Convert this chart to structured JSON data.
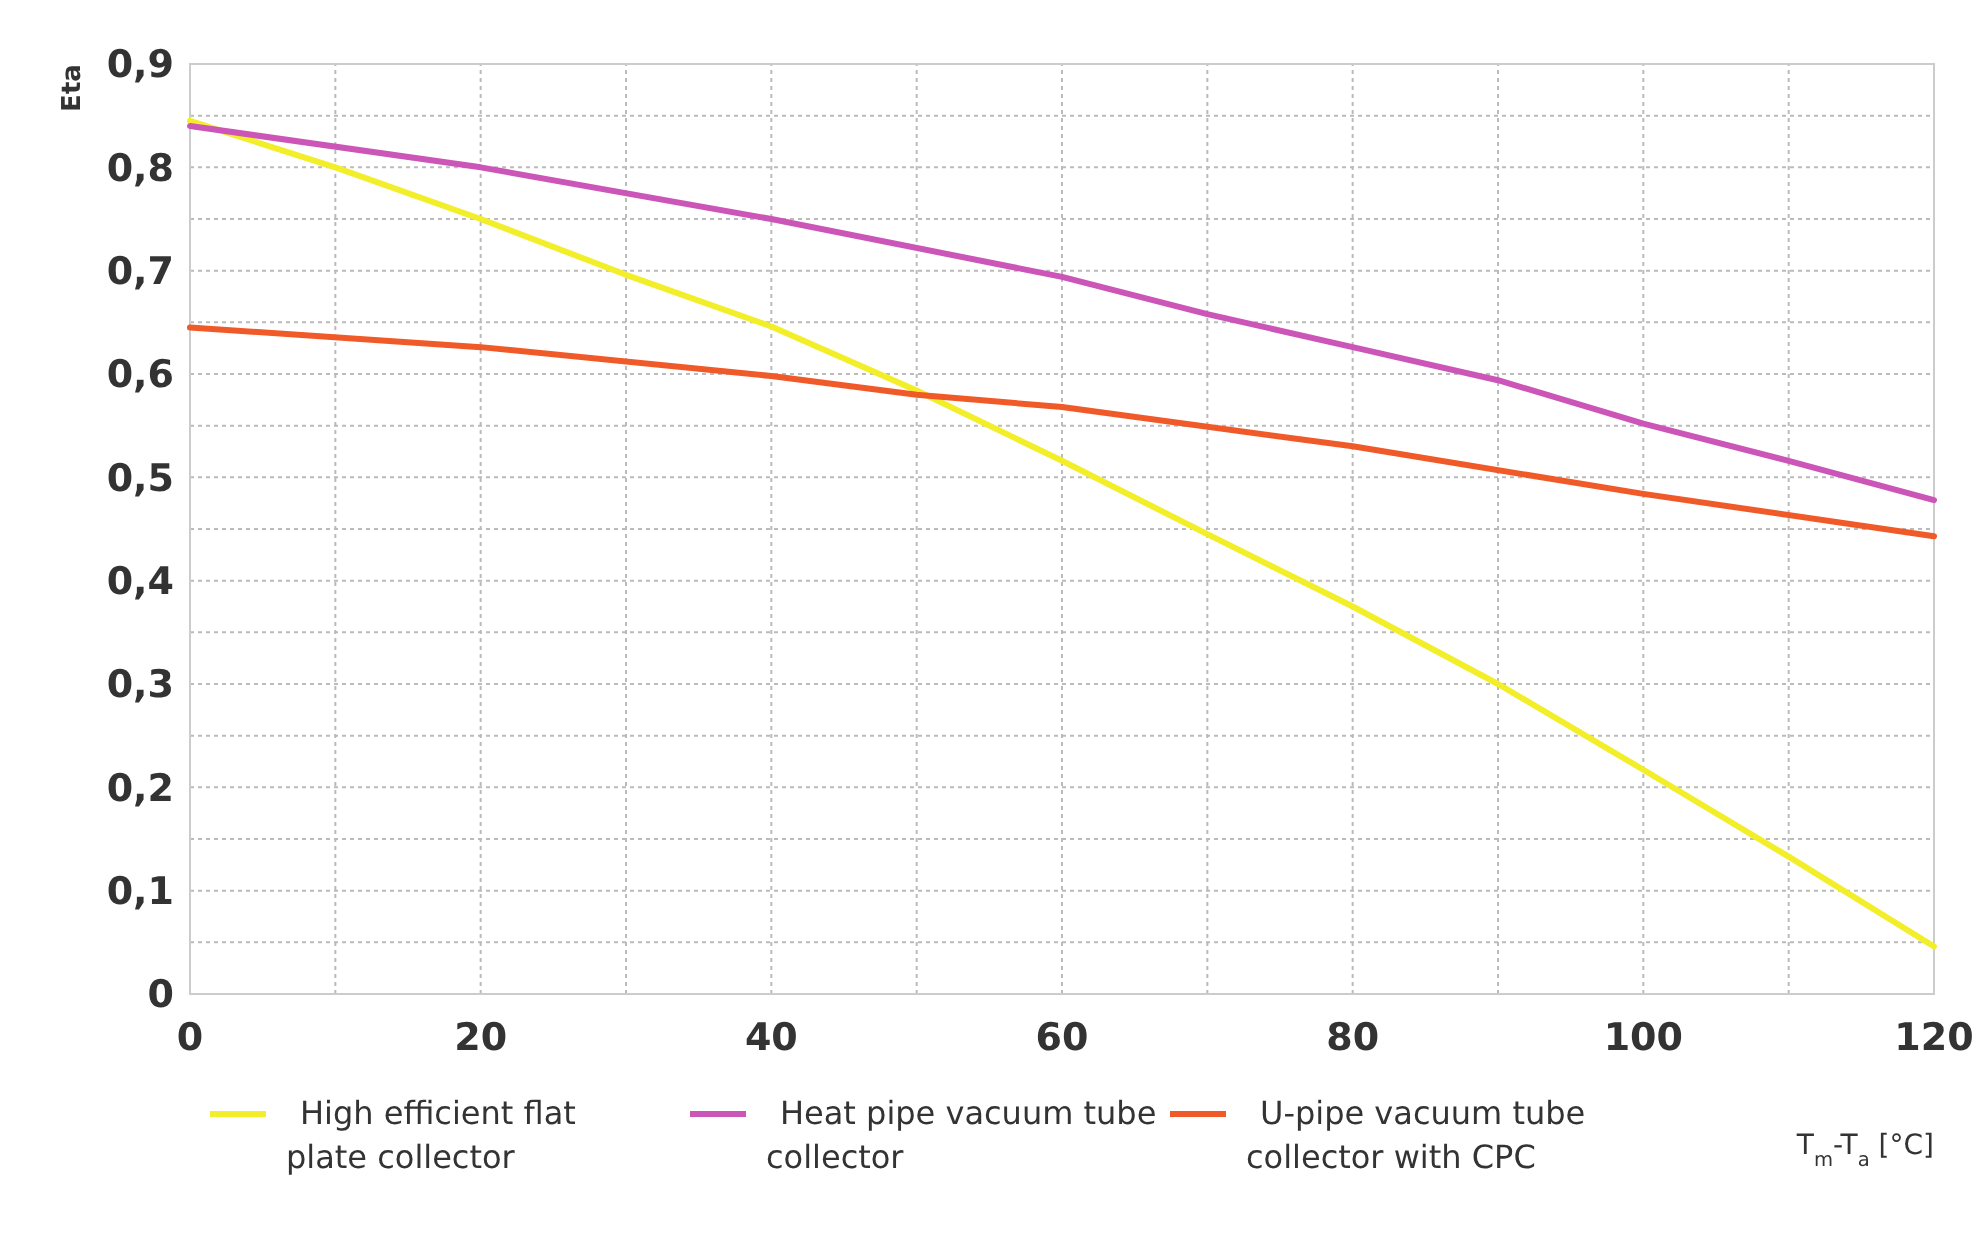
{
  "chart_data": {
    "type": "line",
    "xlabel": "T$_{m}$-T$_{a}$ [°C]",
    "ylabel": "Eta",
    "xlim": [
      0,
      120
    ],
    "ylim": [
      0,
      0.9
    ],
    "xticks": [
      0,
      {
        "value": 10,
        "label": null
      },
      20,
      {
        "value": 30,
        "label": null
      },
      40,
      {
        "value": 50,
        "label": null
      },
      60,
      {
        "value": 70,
        "label": null
      },
      80,
      {
        "value": 90,
        "label": null
      },
      100,
      {
        "value": 110,
        "label": null
      },
      120
    ],
    "yticks": [
      0,
      {
        "value": 0.05,
        "label": null
      },
      {
        "value": 0.1,
        "label": "0,1"
      },
      {
        "value": 0.15,
        "label": null
      },
      {
        "value": 0.2,
        "label": "0,2"
      },
      {
        "value": 0.25,
        "label": null
      },
      {
        "value": 0.3,
        "label": "0,3"
      },
      {
        "value": 0.35,
        "label": null
      },
      {
        "value": 0.4,
        "label": "0,4"
      },
      {
        "value": 0.45,
        "label": null
      },
      {
        "value": 0.5,
        "label": "0,5"
      },
      {
        "value": 0.55,
        "label": null
      },
      {
        "value": 0.6,
        "label": "0,6"
      },
      {
        "value": 0.65,
        "label": null
      },
      {
        "value": 0.7,
        "label": "0,7"
      },
      {
        "value": 0.75,
        "label": null
      },
      {
        "value": 0.8,
        "label": "0,8"
      },
      {
        "value": 0.85,
        "label": null
      },
      {
        "value": 0.9,
        "label": "0,9"
      }
    ],
    "grid": true,
    "legend": "bottom",
    "marker": "none",
    "line_style": "solid",
    "series": [
      {
        "name": "High efficient flat plate collector",
        "color": "#f2ee2a",
        "x": [
          0,
          10,
          20,
          30,
          40,
          50,
          60,
          70,
          80,
          90,
          100,
          110,
          120
        ],
        "values": [
          0.845,
          0.8,
          0.75,
          0.696,
          0.646,
          0.584,
          0.516,
          0.445,
          0.375,
          0.3,
          0.217,
          0.133,
          0.046
        ]
      },
      {
        "name": "Heat pipe vacuum tube collector",
        "color": "#cc55b8",
        "x": [
          0,
          20,
          40,
          60,
          70,
          80,
          90,
          100,
          110,
          120
        ],
        "values": [
          0.84,
          0.8,
          0.75,
          0.694,
          0.658,
          0.626,
          0.594,
          0.552,
          0.516,
          0.478
        ]
      },
      {
        "name": "U-pipe vacuum tube collector with CPC",
        "color": "#f05a28",
        "x": [
          0,
          20,
          40,
          50,
          60,
          80,
          100,
          120
        ],
        "values": [
          0.645,
          0.626,
          0.598,
          0.58,
          0.568,
          0.53,
          0.484,
          0.443
        ]
      }
    ]
  }
}
